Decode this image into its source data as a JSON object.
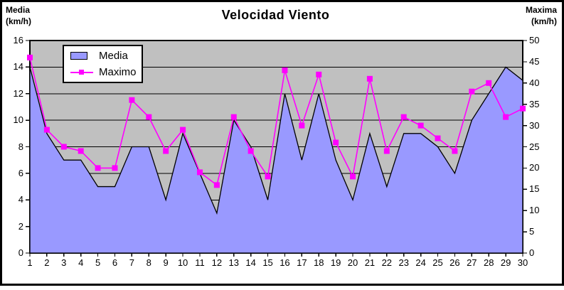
{
  "chart": {
    "title": "Velocidad Viento",
    "left_axis_title": [
      "Media",
      "(km/h)"
    ],
    "right_axis_title": [
      "Maxima",
      "(km/h)"
    ],
    "left_ticks": [
      "16",
      "14",
      "12",
      "10",
      "8",
      "6",
      "4",
      "2",
      "0"
    ],
    "right_ticks": [
      "50",
      "45",
      "40",
      "35",
      "30",
      "25",
      "20",
      "15",
      "10",
      "5",
      "0"
    ],
    "x_labels": [
      "1",
      "2",
      "3",
      "4",
      "5",
      "6",
      "7",
      "8",
      "9",
      "10",
      "11",
      "12",
      "13",
      "14",
      "15",
      "16",
      "17",
      "18",
      "19",
      "20",
      "21",
      "22",
      "23",
      "24",
      "25",
      "26",
      "27",
      "28",
      "29",
      "30"
    ],
    "legend_items": [
      {
        "label": "Media",
        "swatch": "area"
      },
      {
        "label": "Maximo",
        "swatch": "line-square-marker"
      }
    ],
    "colors": {
      "area_fill": "#9999FF",
      "area_outline": "#000000",
      "line": "#FF00FF",
      "marker": "#FF00FF",
      "plot_bg": "#C0C0C0",
      "grid": "#000000",
      "axis": "#000000",
      "title_color": "#000000",
      "legend_bg": "#FFFFFF",
      "outer_border": "#000000"
    }
  },
  "chart_data": {
    "type": "combo-area-line",
    "title": "Velocidad Viento",
    "x": [
      1,
      2,
      3,
      4,
      5,
      6,
      7,
      8,
      9,
      10,
      11,
      12,
      13,
      14,
      15,
      16,
      17,
      18,
      19,
      20,
      21,
      22,
      23,
      24,
      25,
      26,
      27,
      28,
      29,
      30
    ],
    "series": [
      {
        "name": "Media",
        "type": "area",
        "axis": "left",
        "color": "#9999FF",
        "values": [
          14,
          9,
          7,
          7,
          5,
          5,
          8,
          8,
          4,
          9,
          6,
          3,
          10,
          8,
          4,
          12,
          7,
          12,
          7,
          4,
          9,
          5,
          9,
          9,
          8,
          6,
          10,
          12,
          14,
          13
        ]
      },
      {
        "name": "Maximo",
        "type": "line",
        "axis": "right",
        "color": "#FF00FF",
        "marker": "square",
        "values": [
          46,
          29,
          25,
          24,
          20,
          20,
          36,
          32,
          24,
          29,
          19,
          16,
          32,
          24,
          18,
          43,
          30,
          42,
          26,
          18,
          41,
          24,
          32,
          30,
          27,
          24,
          38,
          40,
          32,
          34
        ]
      }
    ],
    "ylabel_left": "Media (km/h)",
    "ylabel_right": "Maxima (km/h)",
    "left_ylim": [
      0,
      16
    ],
    "right_ylim": [
      0,
      50
    ],
    "left_tick_step": 2,
    "right_tick_step": 5,
    "grid": true,
    "legend_position": "top-left-inside"
  }
}
